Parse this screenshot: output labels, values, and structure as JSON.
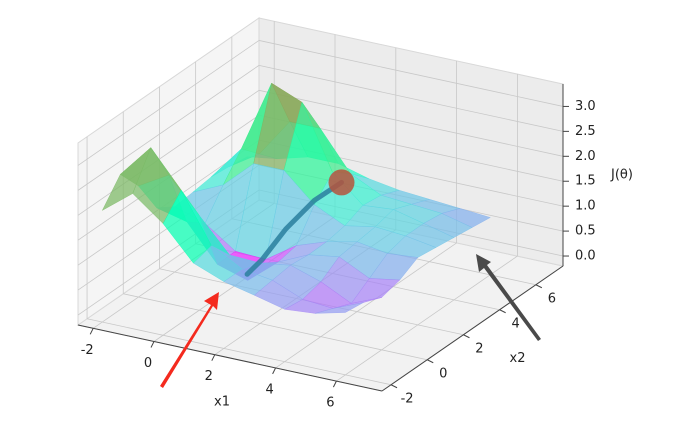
{
  "chart_data": {
    "type": "surface3d",
    "x": [
      -2,
      -1,
      0,
      1,
      2,
      3,
      4,
      5,
      6
    ],
    "y": [
      -2,
      -1,
      0,
      1,
      2,
      3,
      4,
      5,
      6
    ],
    "z": [
      [
        2.04,
        2.51,
        2.04,
        1.38,
        1.14,
        1.0,
        0.85,
        0.9,
        1.05
      ],
      [
        2.51,
        3.18,
        2.46,
        1.48,
        1.14,
        1.05,
        0.8,
        0.75,
        1.0
      ],
      [
        2.03,
        2.38,
        1.7,
        1.04,
        1.01,
        1.1,
        0.9,
        0.6,
        0.85
      ],
      [
        1.34,
        1.19,
        0.47,
        0.28,
        0.78,
        1.06,
        1.15,
        0.85,
        0.95
      ],
      [
        1.11,
        0.91,
        0.48,
        0.45,
        0.86,
        1.07,
        1.2,
        1.1,
        1.15
      ],
      [
        1.15,
        1.43,
        1.99,
        1.99,
        1.43,
        1.14,
        1.25,
        1.2,
        1.1
      ],
      [
        1.2,
        1.9,
        3.35,
        3.1,
        1.83,
        1.3,
        1.35,
        1.2,
        1.05
      ],
      [
        1.16,
        1.55,
        2.33,
        2.33,
        1.55,
        1.25,
        1.2,
        1.15,
        1.0
      ],
      [
        1.11,
        1.2,
        1.37,
        1.37,
        1.2,
        1.1,
        1.05,
        1.0,
        0.95
      ]
    ],
    "colormap": "rainbow",
    "alpha": 0.72,
    "xlim": [
      -2.5,
      7.5
    ],
    "ylim": [
      -2.5,
      7.5
    ],
    "zlim": [
      -0.2,
      3.45
    ],
    "xticks": [
      -2,
      0,
      2,
      4,
      6
    ],
    "yticks": [
      -2,
      0,
      2,
      4,
      6
    ],
    "zticks": [
      {
        "value": 0,
        "label": "0.0"
      },
      0.5,
      {
        "value": 1,
        "label": "1.0"
      },
      1.5,
      {
        "value": 2,
        "label": "2.0"
      },
      2.5,
      {
        "value": 3,
        "label": "3.0"
      }
    ],
    "xlabel": "x1",
    "ylabel": "x2",
    "zlabel": "J(θ)",
    "grid": true,
    "path": {
      "x1": [
        2,
        1.7,
        1.3,
        1,
        0.8
      ],
      "x2": [
        4.5,
        3.5,
        2.6,
        1.8,
        1.3
      ],
      "z": [
        1.5,
        1.35,
        0.95,
        0.5,
        0.3
      ],
      "color": "#2a7f9e"
    },
    "point": {
      "x1": 2,
      "x2": 4.5,
      "z": 1.5,
      "color": "#b5533c"
    }
  }
}
